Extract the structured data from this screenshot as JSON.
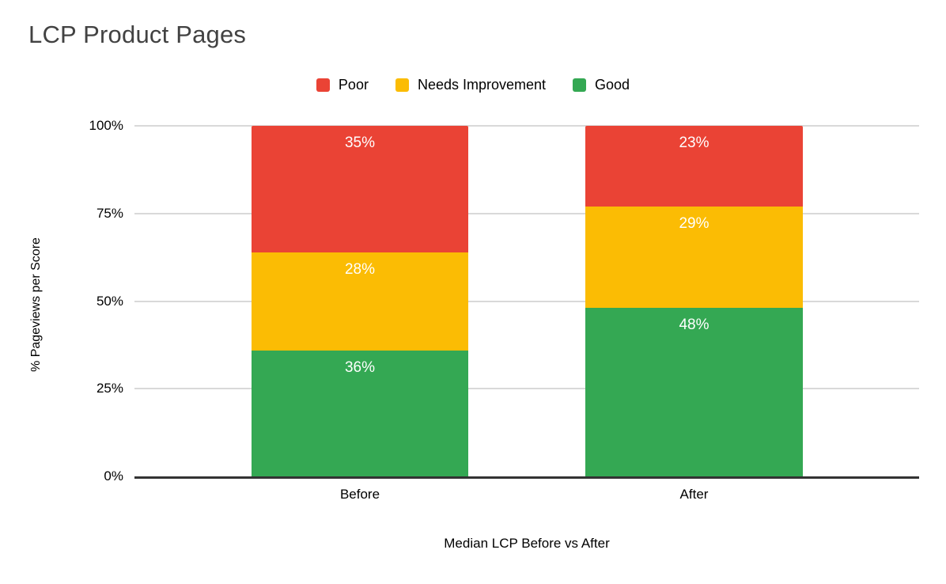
{
  "chart_data": {
    "type": "bar",
    "stacked": true,
    "percent_stacked": true,
    "title": "LCP Product Pages",
    "xlabel": "Median LCP Before vs After",
    "ylabel": "% Pageviews per Score",
    "categories": [
      "Before",
      "After"
    ],
    "series": [
      {
        "name": "Poor",
        "color": "#EA4335",
        "values": [
          35,
          23
        ]
      },
      {
        "name": "Needs Improvement",
        "color": "#FBBC04",
        "values": [
          28,
          29
        ]
      },
      {
        "name": "Good",
        "color": "#34A853",
        "values": [
          36,
          48
        ]
      }
    ],
    "value_suffix": "%",
    "ylim": [
      0,
      100
    ],
    "yticks": [
      "0%",
      "25%",
      "50%",
      "75%",
      "100%"
    ],
    "grid": true,
    "legend_position": "top",
    "colors": {
      "gridline": "#d9d9d9",
      "baseline": "#333333",
      "title_text": "#424242",
      "axis_text": "#000000",
      "data_label_text": "#ffffff",
      "background": "#ffffff"
    }
  }
}
